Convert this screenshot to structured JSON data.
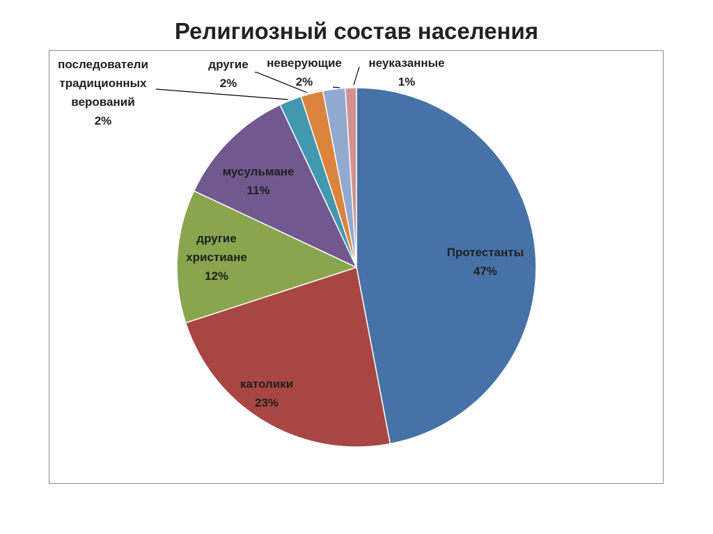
{
  "page": {
    "title": "Религиозный состав населения"
  },
  "chart_data": {
    "type": "pie",
    "title": "",
    "start_angle_deg": 0,
    "direction": "clockwise",
    "slices": [
      {
        "name": "Протестанты",
        "value": 47,
        "label": "47%",
        "color": "#4672A8"
      },
      {
        "name": "католики",
        "value": 23,
        "label": "23%",
        "color": "#A84643"
      },
      {
        "name": "другие христиане",
        "value": 12,
        "label": "12%",
        "color": "#89A54E"
      },
      {
        "name": "мусульмане",
        "value": 11,
        "label": "11%",
        "color": "#71588F"
      },
      {
        "name": "последователи традиционных верований",
        "value": 2,
        "label": "2%",
        "color": "#4198AF"
      },
      {
        "name": "другие",
        "value": 2,
        "label": "2%",
        "color": "#DB843D"
      },
      {
        "name": "неверующие",
        "value": 2,
        "label": "2%",
        "color": "#93A9CF"
      },
      {
        "name": "неуказанные",
        "value": 1,
        "label": "1%",
        "color": "#D19392"
      }
    ]
  }
}
